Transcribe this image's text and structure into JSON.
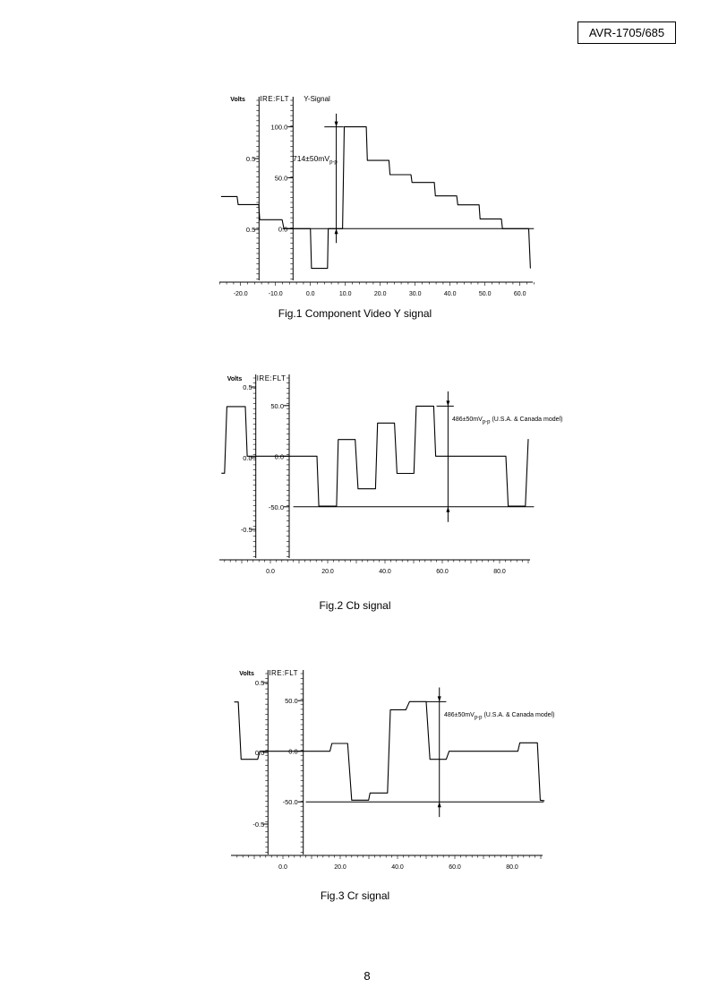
{
  "header": {
    "model": "AVR-1705/685"
  },
  "page_number": "8",
  "chart_data": [
    {
      "type": "line",
      "title": "Fig.1 Component Video Y signal",
      "signal_label": "Y-Signal",
      "volts_label": "Volts",
      "ire_label": "IRE:FLT",
      "volts_ticks": [
        "0.5",
        "0.5"
      ],
      "ire_ticks": [
        {
          "label": "100.0",
          "value": 100
        },
        {
          "label": "50.0",
          "value": 50
        },
        {
          "label": "0.0",
          "value": 0
        }
      ],
      "x_ticks": [
        {
          "label": "-20.0",
          "value": -20
        },
        {
          "label": "-10.0",
          "value": -10
        },
        {
          "label": "0.0",
          "value": 0
        },
        {
          "label": "10.0",
          "value": 10
        },
        {
          "label": "20.0",
          "value": 20
        },
        {
          "label": "30.0",
          "value": 30
        },
        {
          "label": "40.0",
          "value": 40
        },
        {
          "label": "50.0",
          "value": 50
        },
        {
          "label": "60.0",
          "value": 60
        }
      ],
      "annotation": {
        "text": "714±50mV",
        "sub": "p-p"
      },
      "series": [
        {
          "name": "Y",
          "points": [
            [
              -25.6,
              31.6
            ],
            [
              -21,
              31.6
            ],
            [
              -20.7,
              23.7
            ],
            [
              -14.8,
              23.7
            ],
            [
              -14.5,
              8.8
            ],
            [
              -8.1,
              8.8
            ],
            [
              -7.6,
              0
            ],
            [
              0,
              0
            ],
            [
              0.3,
              -39
            ],
            [
              4.9,
              -39
            ],
            [
              5.1,
              0
            ],
            [
              9.2,
              0
            ],
            [
              9.7,
              100
            ],
            [
              16,
              100
            ],
            [
              16.3,
              67
            ],
            [
              22.5,
              67
            ],
            [
              22.8,
              53
            ],
            [
              28.8,
              53
            ],
            [
              29.1,
              45.4
            ],
            [
              35.5,
              45.4
            ],
            [
              35.8,
              32.2
            ],
            [
              41.9,
              32.2
            ],
            [
              42.2,
              23.4
            ],
            [
              48.3,
              23.4
            ],
            [
              48.6,
              9.6
            ],
            [
              54.7,
              9.6
            ],
            [
              55,
              0
            ],
            [
              62.5,
              0
            ],
            [
              63,
              -39
            ]
          ]
        }
      ],
      "baseline": {
        "value": 0,
        "x": [
          -8,
          64
        ]
      },
      "marker": {
        "x": 7.4,
        "ire_range": [
          113,
          -14
        ],
        "top_line": {
          "value": 100,
          "x": [
            4,
            9.5
          ]
        }
      }
    },
    {
      "type": "line",
      "title": "Fig.2 Cb signal",
      "volts_label": "Volts",
      "ire_label": "IRE:FLT",
      "volts_ticks": [
        "0.5",
        "0.0",
        "-0.5"
      ],
      "ire_ticks": [
        {
          "label": "50.0",
          "value": 50
        },
        {
          "label": "0.0",
          "value": 0
        },
        {
          "label": "-50.0",
          "value": -50
        }
      ],
      "x_ticks": [
        {
          "label": "0.0",
          "value": 0
        },
        {
          "label": "20.0",
          "value": 20
        },
        {
          "label": "40.0",
          "value": 40
        },
        {
          "label": "60.0",
          "value": 60
        },
        {
          "label": "80.0",
          "value": 80
        }
      ],
      "annotation": {
        "text": "486±50mV",
        "sub": "p-p",
        "note": "(U.S.A. & Canada model)"
      },
      "series": [
        {
          "name": "Cb",
          "points": [
            [
              -17.1,
              -16.8
            ],
            [
              -16,
              -16.8
            ],
            [
              -15.2,
              49
            ],
            [
              -8.75,
              49
            ],
            [
              -8.1,
              0
            ],
            [
              16.25,
              0
            ],
            [
              16.9,
              -49.3
            ],
            [
              23.1,
              -49.3
            ],
            [
              23.7,
              16.5
            ],
            [
              29.6,
              16.5
            ],
            [
              30.6,
              -32.2
            ],
            [
              36.7,
              -32.2
            ],
            [
              37.4,
              32.7
            ],
            [
              43.3,
              32.7
            ],
            [
              44.2,
              -17
            ],
            [
              50.1,
              -17
            ],
            [
              50.9,
              49.5
            ],
            [
              57,
              49.5
            ],
            [
              57.7,
              0
            ],
            [
              82.2,
              0
            ],
            [
              83,
              -49.3
            ],
            [
              89,
              -49.3
            ],
            [
              90,
              17
            ]
          ]
        }
      ],
      "baseline": {
        "value": -50,
        "x": [
          8,
          92
        ]
      },
      "marker": {
        "x": 62,
        "ire_range": [
          64,
          -65
        ],
        "top_line": {
          "value": 49.5,
          "x": [
            58,
            64
          ]
        }
      }
    },
    {
      "type": "line",
      "title": "Fig.3 Cr signal",
      "volts_label": "Volts",
      "ire_label": "IRE:FLT",
      "volts_ticks": [
        "0.5",
        "0.0",
        "-0.5"
      ],
      "ire_ticks": [
        {
          "label": "50.0",
          "value": 50
        },
        {
          "label": "0.0",
          "value": 0
        },
        {
          "label": "-50.0",
          "value": -50
        }
      ],
      "x_ticks": [
        {
          "label": "0.0",
          "value": 0
        },
        {
          "label": "20.0",
          "value": 20
        },
        {
          "label": "40.0",
          "value": 40
        },
        {
          "label": "60.0",
          "value": 60
        },
        {
          "label": "80.0",
          "value": 80
        }
      ],
      "annotation": {
        "text": "486±50mV",
        "sub": "p-p",
        "note": "(U.S.A. & Canada model)"
      },
      "series": [
        {
          "name": "Cr",
          "points": [
            [
              -17,
              48.7
            ],
            [
              -15.6,
              48.7
            ],
            [
              -14.6,
              -8
            ],
            [
              -8.8,
              -8
            ],
            [
              -8.1,
              0
            ],
            [
              16.4,
              0
            ],
            [
              17.1,
              7.7
            ],
            [
              22.6,
              7.7
            ],
            [
              24,
              -48.3
            ],
            [
              29.9,
              -48.3
            ],
            [
              30.4,
              -41.2
            ],
            [
              36.5,
              -41.2
            ],
            [
              37.5,
              41
            ],
            [
              42.9,
              41
            ],
            [
              44.2,
              49
            ],
            [
              50,
              49
            ],
            [
              51.3,
              -8
            ],
            [
              57,
              -8
            ],
            [
              58,
              0
            ],
            [
              82,
              0
            ],
            [
              82.7,
              8.3
            ],
            [
              88.8,
              8.3
            ],
            [
              89.8,
              -48.3
            ],
            [
              91.3,
              -49
            ]
          ]
        }
      ],
      "baseline": {
        "value": -50,
        "x": [
          8,
          91
        ]
      },
      "marker": {
        "x": 54.6,
        "ire_range": [
          63,
          -65
        ],
        "top_line": {
          "value": 49,
          "x": [
            50,
            57
          ]
        }
      }
    }
  ]
}
